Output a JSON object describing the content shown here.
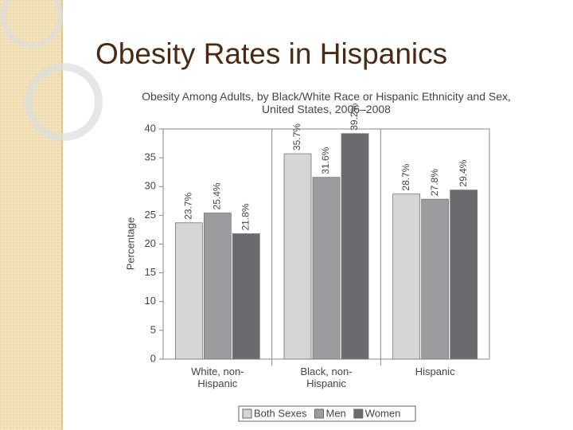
{
  "slide_title": "Obesity Rates in Hispanics",
  "chart_data": {
    "type": "bar",
    "title": "Obesity Among Adults, by Black/White Race or Hispanic Ethnicity and Sex, United States, 2006–2008",
    "y_label": "Percentage",
    "categories": [
      "White, non-Hispanic",
      "Black, non-Hispanic",
      "Hispanic"
    ],
    "series": [
      {
        "name": "Both Sexes",
        "color": "#d6d6d6",
        "values": [
          23.7,
          35.7,
          28.7
        ],
        "value_labels": [
          "23.7%",
          "35.7%",
          "28.7%"
        ]
      },
      {
        "name": "Men",
        "color": "#9c9c9e",
        "values": [
          25.4,
          31.6,
          27.8
        ],
        "value_labels": [
          "25.4%",
          "31.6%",
          "27.8%"
        ]
      },
      {
        "name": "Women",
        "color": "#6b6b6f",
        "values": [
          21.8,
          39.2,
          29.4
        ],
        "value_labels": [
          "21.8%",
          "39.2%",
          "29.4%"
        ]
      }
    ],
    "ylim": [
      0,
      40
    ],
    "yticks": [
      0,
      5,
      10,
      15,
      20,
      25,
      30,
      35,
      40
    ]
  }
}
